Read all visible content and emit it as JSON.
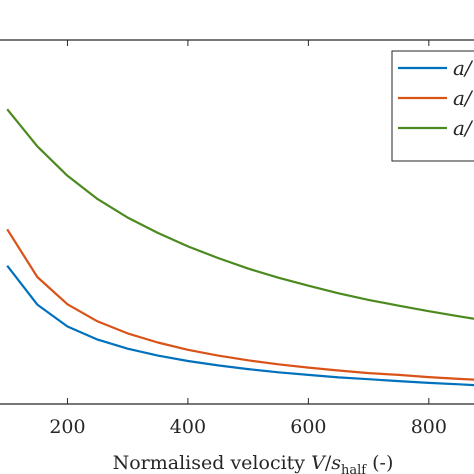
{
  "chart_data": {
    "type": "line",
    "title": "",
    "xlabel": "Normalised velocity V/s_half (-)",
    "xlabel_parts": {
      "prefix": "Normalised velocity ",
      "var": "V",
      "slash": "/",
      "s": "s",
      "sub": "half",
      "suffix": " (-)"
    },
    "ylabel": "",
    "xlim": [
      88,
      875
    ],
    "ylim": [
      0,
      1
    ],
    "xticks": [
      200,
      400,
      600,
      800
    ],
    "xtick_labels": [
      "200",
      "400",
      "600",
      "800"
    ],
    "grid": false,
    "legend_position": "top-right",
    "x": [
      100,
      150,
      200,
      250,
      300,
      350,
      400,
      450,
      500,
      550,
      600,
      650,
      700,
      750,
      800,
      850,
      875
    ],
    "series": [
      {
        "name": "a/",
        "color": "#0072BD",
        "values": [
          0.38,
          0.273,
          0.213,
          0.177,
          0.152,
          0.133,
          0.118,
          0.106,
          0.096,
          0.087,
          0.08,
          0.073,
          0.068,
          0.063,
          0.058,
          0.054,
          0.052
        ]
      },
      {
        "name": "a/",
        "color": "#D95319",
        "values": [
          0.48,
          0.349,
          0.274,
          0.227,
          0.194,
          0.169,
          0.149,
          0.133,
          0.12,
          0.109,
          0.1,
          0.092,
          0.085,
          0.08,
          0.074,
          0.069,
          0.067
        ]
      },
      {
        "name": "a/",
        "color": "#4C8A1F",
        "values": [
          0.81,
          0.708,
          0.627,
          0.563,
          0.512,
          0.47,
          0.433,
          0.401,
          0.372,
          0.347,
          0.325,
          0.304,
          0.286,
          0.27,
          0.255,
          0.241,
          0.234
        ]
      }
    ]
  }
}
